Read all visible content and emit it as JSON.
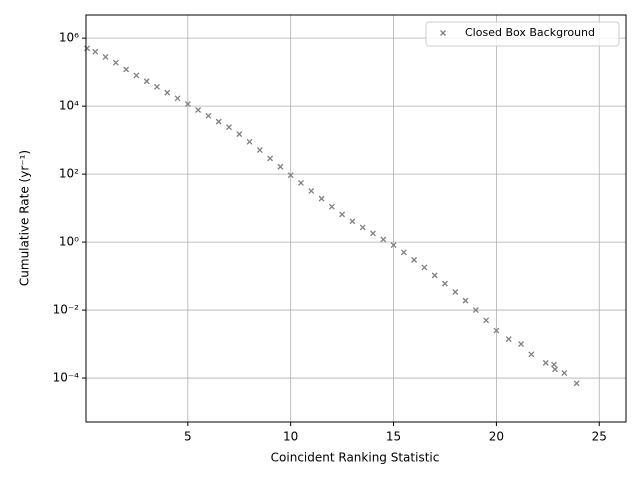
{
  "chart_data": {
    "type": "scatter",
    "xlabel": "Coincident Ranking Statistic",
    "ylabel": "Cumulative Rate (yr⁻¹)",
    "xlim": [
      0.05,
      26.3
    ],
    "ylim": [
      5.1e-06,
      4800000.0
    ],
    "ylog": true,
    "grid": true,
    "legend": "upper right",
    "xticks": [
      5,
      10,
      15,
      20,
      25
    ],
    "yticks": [
      {
        "value": 0.0001,
        "label": "10⁻⁴"
      },
      {
        "value": 0.01,
        "label": "10⁻²"
      },
      {
        "value": 1,
        "label": "10⁰"
      },
      {
        "value": 100,
        "label": "10²"
      },
      {
        "value": 10000,
        "label": "10⁴"
      },
      {
        "value": 1000000,
        "label": "10⁶"
      }
    ],
    "series": [
      {
        "name": "Closed Box Background",
        "color": "#808080",
        "x": [
          0.1,
          0.5,
          1,
          1.5,
          2,
          2.5,
          3,
          3.5,
          4,
          4.5,
          5,
          5.5,
          6,
          6.5,
          7,
          7.5,
          8,
          8.5,
          9,
          9.5,
          10,
          10.5,
          11,
          11.5,
          12,
          12.5,
          13,
          13.5,
          14,
          14.5,
          15,
          15.5,
          16,
          16.5,
          17,
          17.5,
          18,
          18.5,
          19,
          19.5,
          20,
          20.6,
          21.2,
          21.7,
          22.4,
          22.8,
          22.85,
          23.3,
          23.9
        ],
        "values": [
          500000,
          400000,
          280000,
          190000,
          120000,
          80000,
          54000,
          37000,
          25000,
          17000,
          11500,
          7700,
          5200,
          3500,
          2400,
          1500,
          890,
          510,
          290,
          165,
          93,
          55,
          32,
          19,
          11,
          6.5,
          4.1,
          2.7,
          1.8,
          1.2,
          0.81,
          0.5,
          0.3,
          0.18,
          0.105,
          0.06,
          0.034,
          0.019,
          0.01,
          0.005,
          0.0025,
          0.0014,
          0.001,
          0.0005,
          0.00028,
          0.00025,
          0.00018,
          0.00014,
          7e-05
        ]
      }
    ]
  }
}
